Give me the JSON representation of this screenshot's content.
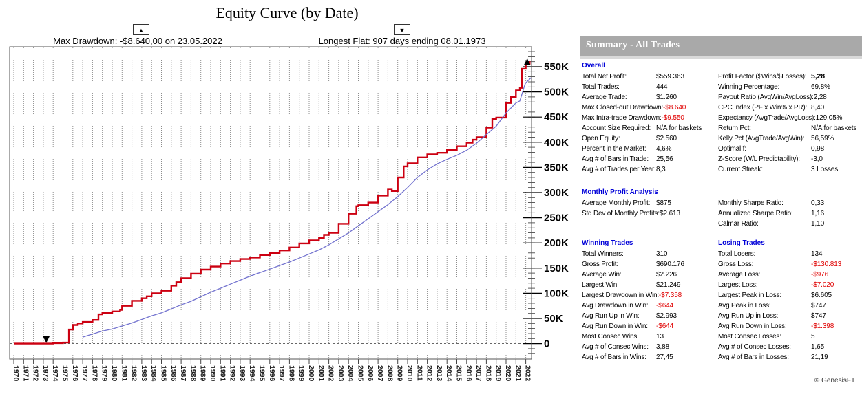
{
  "page": {
    "footer": "© GenesisFT"
  },
  "chart_data": {
    "type": "line",
    "title": "Equity Curve (by Date)",
    "xlabel": "",
    "ylabel": "",
    "grid": "vertical dotted line per year; dashed horizontal line at 0",
    "legend": "none",
    "xlim_years": [
      1969.6,
      2022.6
    ],
    "ylim_k": [
      -30,
      590
    ],
    "x_tick_years": [
      1970,
      1971,
      1972,
      1973,
      1974,
      1975,
      1976,
      1977,
      1978,
      1979,
      1980,
      1981,
      1982,
      1983,
      1984,
      1985,
      1986,
      1987,
      1988,
      1989,
      1990,
      1991,
      1992,
      1993,
      1994,
      1995,
      1996,
      1997,
      1998,
      1999,
      2000,
      2001,
      2002,
      2003,
      2004,
      2005,
      2006,
      2007,
      2008,
      2009,
      2010,
      2011,
      2012,
      2013,
      2014,
      2015,
      2016,
      2017,
      2018,
      2019,
      2020,
      2021,
      2022
    ],
    "y_ticks": [
      {
        "value_k": 0,
        "label": "0"
      },
      {
        "value_k": 50,
        "label": "50K"
      },
      {
        "value_k": 100,
        "label": "100K"
      },
      {
        "value_k": 150,
        "label": "150K"
      },
      {
        "value_k": 200,
        "label": "200K"
      },
      {
        "value_k": 250,
        "label": "250K"
      },
      {
        "value_k": 300,
        "label": "300K"
      },
      {
        "value_k": 350,
        "label": "350K"
      },
      {
        "value_k": 400,
        "label": "400K"
      },
      {
        "value_k": 450,
        "label": "450K"
      },
      {
        "value_k": 500,
        "label": "500K"
      },
      {
        "value_k": 550,
        "label": "550K"
      }
    ],
    "annotations": {
      "max_drawdown": {
        "text": "Max Drawdown: -$8.640,00 on 23.05.2022",
        "glyph": "▲",
        "marker": "up-triangle",
        "marker_year": 2022.15,
        "marker_value_k": 561
      },
      "longest_flat": {
        "text": "Longest Flat: 907 days ending 08.01.1973",
        "glyph": "▼",
        "marker": "down-triangle",
        "marker_year": 1973.3,
        "marker_value_k": 0
      }
    },
    "series": [
      {
        "name": "red",
        "color": "#cc0011",
        "style": "step",
        "width": 2.4,
        "points_year_valueK": [
          [
            1970,
            0
          ],
          [
            1971,
            0
          ],
          [
            1972,
            0
          ],
          [
            1973,
            0
          ],
          [
            1974,
            1
          ],
          [
            1975,
            2
          ],
          [
            1975.6,
            28
          ],
          [
            1976,
            37
          ],
          [
            1976.5,
            40
          ],
          [
            1977,
            43
          ],
          [
            1978,
            47
          ],
          [
            1978.6,
            58
          ],
          [
            1979,
            61
          ],
          [
            1980,
            64
          ],
          [
            1980.8,
            67
          ],
          [
            1981,
            75
          ],
          [
            1982,
            85
          ],
          [
            1983,
            90
          ],
          [
            1983.5,
            94
          ],
          [
            1984,
            100
          ],
          [
            1985,
            105
          ],
          [
            1986,
            115
          ],
          [
            1986.5,
            122
          ],
          [
            1987,
            130
          ],
          [
            1988,
            139
          ],
          [
            1989,
            147
          ],
          [
            1990,
            153
          ],
          [
            1991,
            159
          ],
          [
            1992,
            164
          ],
          [
            1993,
            168
          ],
          [
            1994,
            171
          ],
          [
            1995,
            176
          ],
          [
            1996,
            180
          ],
          [
            1997,
            185
          ],
          [
            1998,
            191
          ],
          [
            1999,
            199
          ],
          [
            2000,
            205
          ],
          [
            2001,
            210
          ],
          [
            2001.5,
            216
          ],
          [
            2002,
            220
          ],
          [
            2003,
            238
          ],
          [
            2004,
            258
          ],
          [
            2004.8,
            273
          ],
          [
            2005,
            275
          ],
          [
            2006,
            280
          ],
          [
            2007,
            294
          ],
          [
            2008,
            306
          ],
          [
            2008.4,
            303
          ],
          [
            2009,
            330
          ],
          [
            2009.6,
            352
          ],
          [
            2010,
            358
          ],
          [
            2011,
            370
          ],
          [
            2012,
            376
          ],
          [
            2013,
            379
          ],
          [
            2014,
            385
          ],
          [
            2015,
            392
          ],
          [
            2016,
            399
          ],
          [
            2016.6,
            405
          ],
          [
            2017,
            410
          ],
          [
            2018,
            429
          ],
          [
            2018.6,
            446
          ],
          [
            2019,
            449
          ],
          [
            2020,
            478
          ],
          [
            2020.5,
            490
          ],
          [
            2021,
            503
          ],
          [
            2021.4,
            508
          ],
          [
            2021.6,
            546
          ],
          [
            2022,
            556
          ],
          [
            2022.4,
            561
          ]
        ]
      },
      {
        "name": "blue",
        "color": "#7373cf",
        "style": "linear",
        "width": 1.3,
        "points_year_valueK": [
          [
            1977,
            13
          ],
          [
            1978,
            19
          ],
          [
            1979,
            25
          ],
          [
            1980,
            29
          ],
          [
            1981,
            35
          ],
          [
            1982,
            41
          ],
          [
            1983,
            48
          ],
          [
            1984,
            55
          ],
          [
            1985,
            61
          ],
          [
            1986,
            69
          ],
          [
            1987,
            77
          ],
          [
            1988,
            84
          ],
          [
            1989,
            93
          ],
          [
            1990,
            102
          ],
          [
            1991,
            110
          ],
          [
            1992,
            118
          ],
          [
            1993,
            126
          ],
          [
            1994,
            134
          ],
          [
            1995,
            141
          ],
          [
            1996,
            148
          ],
          [
            1997,
            155
          ],
          [
            1998,
            162
          ],
          [
            1999,
            170
          ],
          [
            2000,
            178
          ],
          [
            2001,
            186
          ],
          [
            2002,
            196
          ],
          [
            2003,
            208
          ],
          [
            2004,
            220
          ],
          [
            2005,
            234
          ],
          [
            2006,
            248
          ],
          [
            2007,
            262
          ],
          [
            2008,
            276
          ],
          [
            2009,
            292
          ],
          [
            2010,
            310
          ],
          [
            2011,
            330
          ],
          [
            2012,
            345
          ],
          [
            2013,
            357
          ],
          [
            2014,
            366
          ],
          [
            2015,
            374
          ],
          [
            2016,
            384
          ],
          [
            2017,
            398
          ],
          [
            2018,
            415
          ],
          [
            2019,
            432
          ],
          [
            2020,
            458
          ],
          [
            2020.7,
            472
          ],
          [
            2021,
            478
          ],
          [
            2021.4,
            482
          ],
          [
            2021.9,
            514
          ],
          [
            2022,
            518
          ],
          [
            2022.6,
            528
          ]
        ]
      }
    ]
  },
  "summary": {
    "header": "Summary - All Trades",
    "sections": {
      "overall": {
        "title": "Overall",
        "left": [
          {
            "label": "Total Net Profit:",
            "value": "$559.363"
          },
          {
            "label": "Total Trades:",
            "value": "444"
          },
          {
            "label": "Average Trade:",
            "value": "$1.260"
          },
          {
            "label": "Max Closed-out Drawdown:",
            "value": "-$8.640",
            "cls": "neg"
          },
          {
            "label": "Max Intra-trade Drawdown:",
            "value": "-$9.550",
            "cls": "neg"
          },
          {
            "label": "Account Size Required:",
            "value": "N/A for baskets"
          },
          {
            "label": "Open Equity:",
            "value": "$2.560"
          },
          {
            "label": "Percent in the Market:",
            "value": "4,6%"
          },
          {
            "label": "Avg # of Bars in Trade:",
            "value": "25,56"
          },
          {
            "label": "Avg # of Trades per Year:",
            "value": "8,3"
          }
        ],
        "right": [
          {
            "label": "Profit Factor ($Wins/$Losses):",
            "value": "5,28",
            "cls": "bold"
          },
          {
            "label": "Winning Percentage:",
            "value": "69,8%"
          },
          {
            "label": "Payout Ratio (AvgWin/AvgLoss):",
            "value": "2,28"
          },
          {
            "label": "CPC Index (PF x Win% x PR):",
            "value": "8,40"
          },
          {
            "label": "Expectancy (AvgTrade/AvgLoss):",
            "value": "129,05%"
          },
          {
            "label": "Return Pct:",
            "value": "N/A for baskets"
          },
          {
            "label": "Kelly Pct (AvgTrade/AvgWin):",
            "value": "56,59%"
          },
          {
            "label": "Optimal f:",
            "value": "0,98"
          },
          {
            "label": "Z-Score (W/L Predictability):",
            "value": "-3,0"
          },
          {
            "label": "Current Streak:",
            "value": "3 Losses"
          }
        ]
      },
      "monthly": {
        "title": "Monthly Profit Analysis",
        "left": [
          {
            "label": "Average Monthly Profit:",
            "value": "$875"
          },
          {
            "label": "Std Dev of Monthly Profits:",
            "value": "$2.613"
          }
        ],
        "right": [
          {
            "label": "Monthly Sharpe Ratio:",
            "value": "0,33"
          },
          {
            "label": "Annualized Sharpe Ratio:",
            "value": "1,16"
          },
          {
            "label": "Calmar Ratio:",
            "value": "1,10"
          }
        ]
      },
      "winning": {
        "title": "Winning Trades",
        "rows": [
          {
            "label": "Total Winners:",
            "value": "310"
          },
          {
            "label": "Gross Profit:",
            "value": "$690.176"
          },
          {
            "label": "Average Win:",
            "value": "$2.226"
          },
          {
            "label": "Largest Win:",
            "value": "$21.249"
          },
          {
            "label": "Largest Drawdown in Win:",
            "value": "-$7.358",
            "cls": "neg"
          },
          {
            "label": "Avg Drawdown in Win:",
            "value": "-$644",
            "cls": "neg"
          },
          {
            "label": "Avg Run Up in Win:",
            "value": "$2.993"
          },
          {
            "label": "Avg Run Down in Win:",
            "value": "-$644",
            "cls": "neg"
          },
          {
            "label": "Most Consec Wins:",
            "value": "13"
          },
          {
            "label": "Avg # of Consec Wins:",
            "value": "3,88"
          },
          {
            "label": "Avg # of Bars in Wins:",
            "value": "27,45"
          }
        ]
      },
      "losing": {
        "title": "Losing Trades",
        "rows": [
          {
            "label": "Total Losers:",
            "value": "134"
          },
          {
            "label": "Gross Loss:",
            "value": "-$130.813",
            "cls": "neg"
          },
          {
            "label": "Average Loss:",
            "value": "-$976",
            "cls": "neg"
          },
          {
            "label": "Largest Loss:",
            "value": "-$7.020",
            "cls": "neg"
          },
          {
            "label": "Largest Peak in Loss:",
            "value": "$6.605"
          },
          {
            "label": "Avg Peak in Loss:",
            "value": "$747"
          },
          {
            "label": "Avg Run Up in Loss:",
            "value": "$747"
          },
          {
            "label": "Avg Run Down in Loss:",
            "value": "-$1.398",
            "cls": "neg"
          },
          {
            "label": "Most Consec Losses:",
            "value": "5"
          },
          {
            "label": "Avg # of Consec Losses:",
            "value": "1,65"
          },
          {
            "label": "Avg # of Bars in Losses:",
            "value": "21,19"
          }
        ]
      }
    }
  },
  "colors": {
    "red_line": "#cc0011",
    "blue_line": "#7373cf",
    "negative": "#e00000",
    "section_title": "#0000d8",
    "header_bar": "#a9a9a9",
    "grid": "#8c8c8c"
  }
}
